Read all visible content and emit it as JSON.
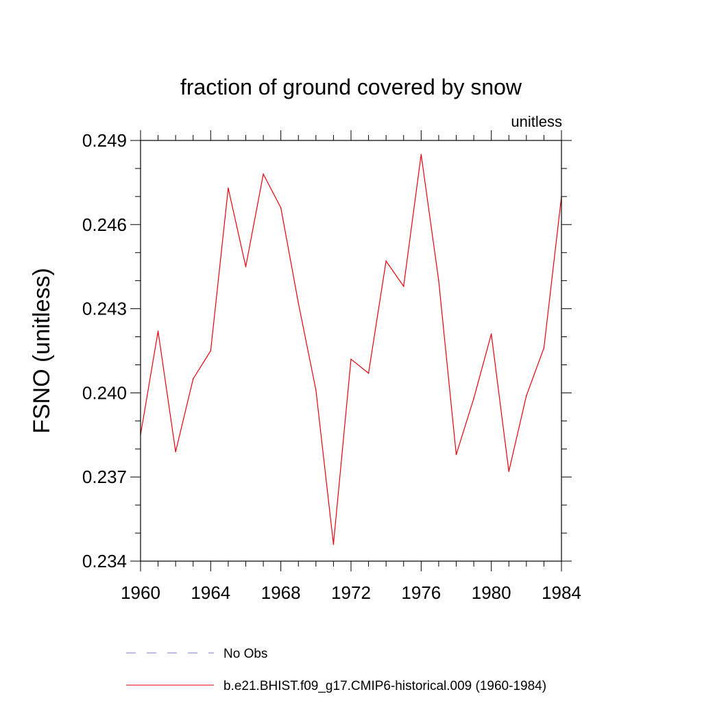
{
  "chart_data": {
    "type": "line",
    "title": "fraction of ground covered by snow",
    "units_label": "unitless",
    "ylabel": "FSNO  (unitless)",
    "xlabel": "",
    "xlim": [
      1960,
      1984
    ],
    "ylim": [
      0.234,
      0.249
    ],
    "x_ticks": [
      1960,
      1964,
      1968,
      1972,
      1976,
      1980,
      1984
    ],
    "x_tick_labels": [
      "1960",
      "1964",
      "1968",
      "1972",
      "1976",
      "1980",
      "1984"
    ],
    "y_ticks": [
      0.234,
      0.237,
      0.24,
      0.243,
      0.246,
      0.249
    ],
    "y_tick_labels": [
      "0.234",
      "0.237",
      "0.240",
      "0.243",
      "0.246",
      "0.249"
    ],
    "grid": false,
    "legend_position": "bottom",
    "series": [
      {
        "name": "b.e21.BHIST.f09_g17.CMIP6-historical.009 (1960-1984)",
        "color": "#e8000b",
        "style": "solid",
        "x": [
          1960,
          1961,
          1962,
          1963,
          1964,
          1965,
          1966,
          1967,
          1968,
          1969,
          1970,
          1971,
          1972,
          1973,
          1974,
          1975,
          1976,
          1977,
          1978,
          1979,
          1980,
          1981,
          1982,
          1983,
          1984
        ],
        "y": [
          0.2385,
          0.2422,
          0.2379,
          0.2405,
          0.2415,
          0.2473,
          0.2445,
          0.2478,
          0.2466,
          0.2432,
          0.2401,
          0.2346,
          0.2412,
          0.2407,
          0.2447,
          0.2438,
          0.2485,
          0.244,
          0.2378,
          0.2398,
          0.2421,
          0.2372,
          0.2399,
          0.2416,
          0.247
        ]
      }
    ],
    "legend": [
      {
        "label": "No Obs",
        "color": "#7b7bc8",
        "style": "dashed"
      },
      {
        "label": "b.e21.BHIST.f09_g17.CMIP6-historical.009 (1960-1984)",
        "color": "#e8000b",
        "style": "solid"
      }
    ]
  }
}
